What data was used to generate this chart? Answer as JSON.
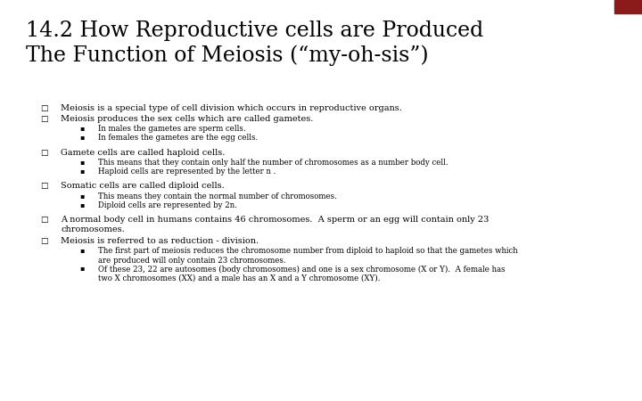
{
  "title_line1": "14.2 How Reproductive cells are Produced",
  "title_line2": "The Function of Meiosis (“my-oh-sis”)",
  "title_color": "#000000",
  "header_bar_color": "#8B8B5A",
  "header_red_color": "#6B0000",
  "header_accent_color": "#8B1A1A",
  "bg_color": "#FFFFFF",
  "title_font_size": 17,
  "body_font_size": 7.0,
  "sub_font_size": 6.2,
  "line_color": "#333333",
  "items": [
    {
      "level": 0,
      "text": "Meiosis is a special type of cell division which occurs in reproductive organs.",
      "underline": ""
    },
    {
      "level": 0,
      "text": "Meiosis produces the sex cells which are called gametes.",
      "underline": "gametes"
    },
    {
      "level": 1,
      "text": "In males the gametes are sperm cells.",
      "underline": "sperm cells"
    },
    {
      "level": 1,
      "text": "In females the gametes are the egg cells.",
      "underline": "egg cells"
    },
    {
      "level": -1,
      "text": ""
    },
    {
      "level": 0,
      "text": "Gamete cells are called haploid cells.",
      "underline": "haploid"
    },
    {
      "level": 1,
      "text": "This means that they contain only half the number of chromosomes as a number body cell.",
      "underline": ""
    },
    {
      "level": 1,
      "text": "Haploid cells are represented by the letter n .",
      "underline": "n"
    },
    {
      "level": -1,
      "text": ""
    },
    {
      "level": 0,
      "text": "Somatic cells are called diploid cells.",
      "underline": "diploid"
    },
    {
      "level": 1,
      "text": "This means they contain the normal number of chromosomes.",
      "underline": ""
    },
    {
      "level": 1,
      "text": "Diploid cells are represented by 2n.",
      "underline": "2n"
    },
    {
      "level": -1,
      "text": ""
    },
    {
      "level": 0,
      "text": "A normal body cell in humans contains 46 chromosomes.  A sperm or an egg will contain only 23\nchromosomes.",
      "underline": ""
    },
    {
      "level": 0,
      "text": "Meiosis is referred to as reduction - division.",
      "underline": "reduction - division"
    },
    {
      "level": 1,
      "text": "The first part of meiosis reduces the chromosome number from diploid to haploid so that the gametes which\nare produced will only contain 23 chromosomes.",
      "underline": ""
    },
    {
      "level": 1,
      "text": "Of these 23, 22 are autosomes (body chromosomes) and one is a sex chromosome (X or Y).  A female has\ntwo X chromosomes (XX) and a male has an X and a Y chromosome (XY).",
      "underline": ""
    }
  ]
}
